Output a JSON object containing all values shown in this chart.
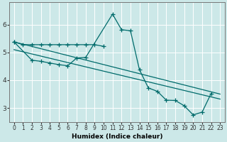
{
  "title": "",
  "xlabel": "Humidex (Indice chaleur)",
  "ylabel": "",
  "background_color": "#cce8e8",
  "grid_color": "#ffffff",
  "line_color": "#006b6b",
  "xlim": [
    -0.5,
    23.5
  ],
  "ylim": [
    2.5,
    6.8
  ],
  "xticks": [
    0,
    1,
    2,
    3,
    4,
    5,
    6,
    7,
    8,
    9,
    10,
    11,
    12,
    13,
    14,
    15,
    16,
    17,
    18,
    19,
    20,
    21,
    22,
    23
  ],
  "yticks": [
    3,
    4,
    5,
    6
  ],
  "line1_x": [
    0,
    1,
    2,
    3,
    4,
    5,
    6,
    7,
    8,
    9,
    10
  ],
  "line1_y": [
    5.38,
    5.28,
    5.28,
    5.28,
    5.28,
    5.28,
    5.28,
    5.28,
    5.28,
    5.28,
    5.22
  ],
  "line2_x": [
    0,
    2,
    3,
    4,
    5,
    6,
    7,
    8,
    11,
    12,
    13,
    14,
    15,
    16,
    17,
    18,
    19,
    20,
    21,
    22
  ],
  "line2_y": [
    5.38,
    4.72,
    4.68,
    4.62,
    4.56,
    4.52,
    4.8,
    4.82,
    6.38,
    5.82,
    5.78,
    4.38,
    3.72,
    3.6,
    3.28,
    3.27,
    3.08,
    2.75,
    2.85,
    3.52
  ],
  "line3_x": [
    0,
    23
  ],
  "line3_y": [
    5.38,
    3.5
  ],
  "line4_x": [
    0,
    23
  ],
  "line4_y": [
    5.1,
    3.32
  ],
  "xlabel_fontsize": 6.5,
  "tick_fontsize_x": 5.5,
  "tick_fontsize_y": 6.5
}
